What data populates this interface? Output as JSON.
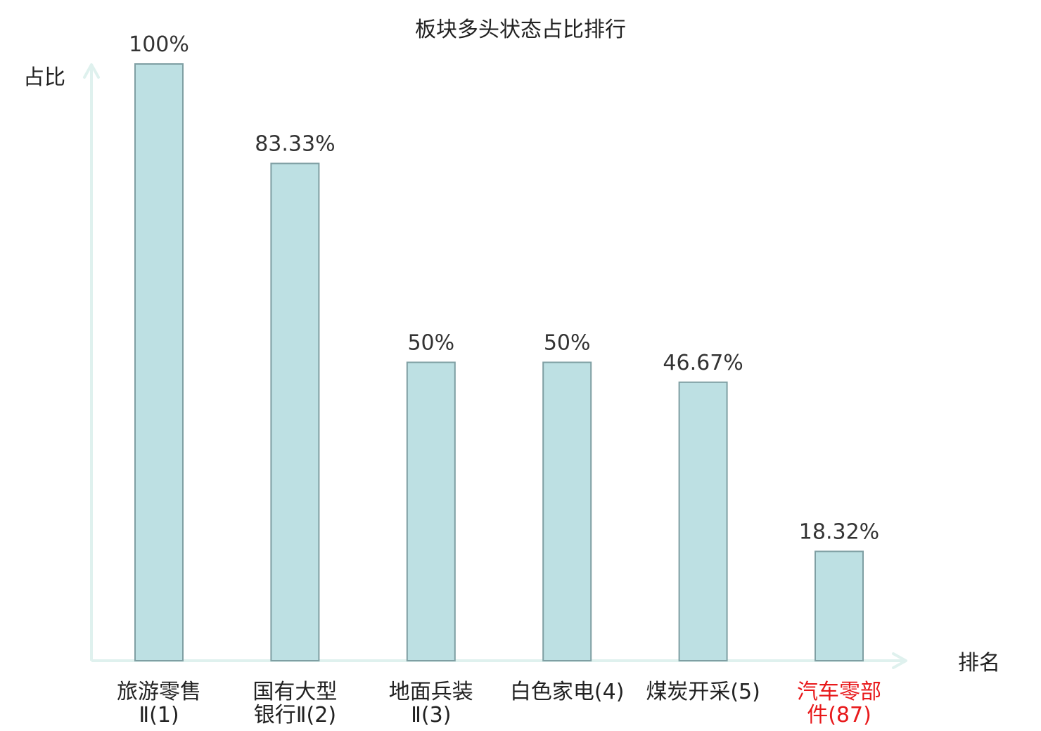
{
  "chart_data": {
    "type": "bar",
    "title": "板块多头状态占比排行",
    "ylabel": "占比",
    "xlabel": "排名",
    "ylim": [
      0,
      100
    ],
    "grid": false,
    "legend": "none",
    "categories": [
      {
        "lines": [
          "旅游零售",
          "Ⅱ(1)"
        ],
        "highlight": false
      },
      {
        "lines": [
          "国有大型",
          "银行Ⅱ(2)"
        ],
        "highlight": false
      },
      {
        "lines": [
          "地面兵装",
          "Ⅱ(3)"
        ],
        "highlight": false
      },
      {
        "lines": [
          "白色家电(4)"
        ],
        "highlight": false
      },
      {
        "lines": [
          "煤炭开采(5)"
        ],
        "highlight": false
      },
      {
        "lines": [
          "汽车零部",
          "件(87)"
        ],
        "highlight": true
      }
    ],
    "values": [
      100,
      83.33,
      50,
      50,
      46.67,
      18.32
    ],
    "data_labels": [
      "100%",
      "83.33%",
      "50%",
      "50%",
      "46.67%",
      "18.32%"
    ],
    "colors": {
      "bar_fill": "#bde0e3",
      "bar_stroke": "#7f9fa3",
      "axis": "#dff1ee",
      "text": "#333333",
      "highlight_text": "#e8191b"
    }
  }
}
